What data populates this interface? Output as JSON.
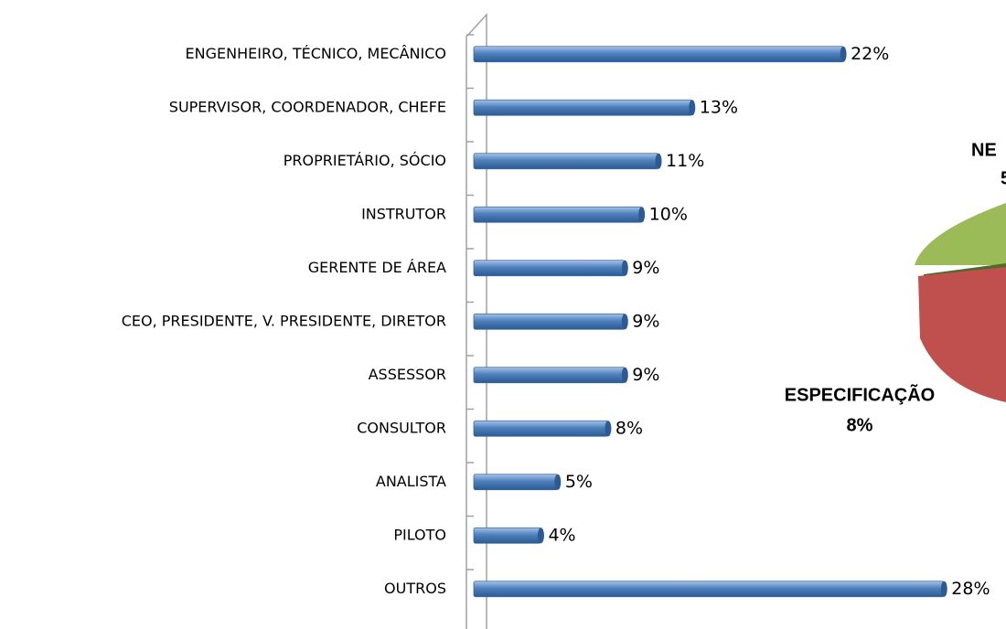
{
  "chart_data": [
    {
      "type": "bar",
      "orientation": "horizontal",
      "categories": [
        "ENGENHEIRO, TÉCNICO, MECÂNICO",
        "SUPERVISOR, COORDENADOR, CHEFE",
        "PROPRIETÁRIO, SÓCIO",
        "INSTRUTOR",
        "GERENTE DE ÁREA",
        "CEO, PRESIDENTE, V. PRESIDENTE, DIRETOR",
        "ASSESSOR",
        "CONSULTOR",
        "ANALISTA",
        "PILOTO",
        "OUTROS"
      ],
      "values": [
        22,
        13,
        11,
        10,
        9,
        9,
        9,
        8,
        5,
        4,
        28
      ],
      "value_labels": [
        "22%",
        "13%",
        "11%",
        "10%",
        "9%",
        "9%",
        "9%",
        "8%",
        "5%",
        "4%",
        "28%"
      ],
      "color": "#4f81bd",
      "xlim": [
        0,
        30
      ]
    },
    {
      "type": "pie",
      "categories": [
        "NE",
        "ESPECIFICAÇÃO"
      ],
      "values": [
        5,
        8
      ],
      "value_labels": [
        "5",
        "8%"
      ],
      "colors": [
        "#9bbb59",
        "#c0504d"
      ]
    }
  ]
}
